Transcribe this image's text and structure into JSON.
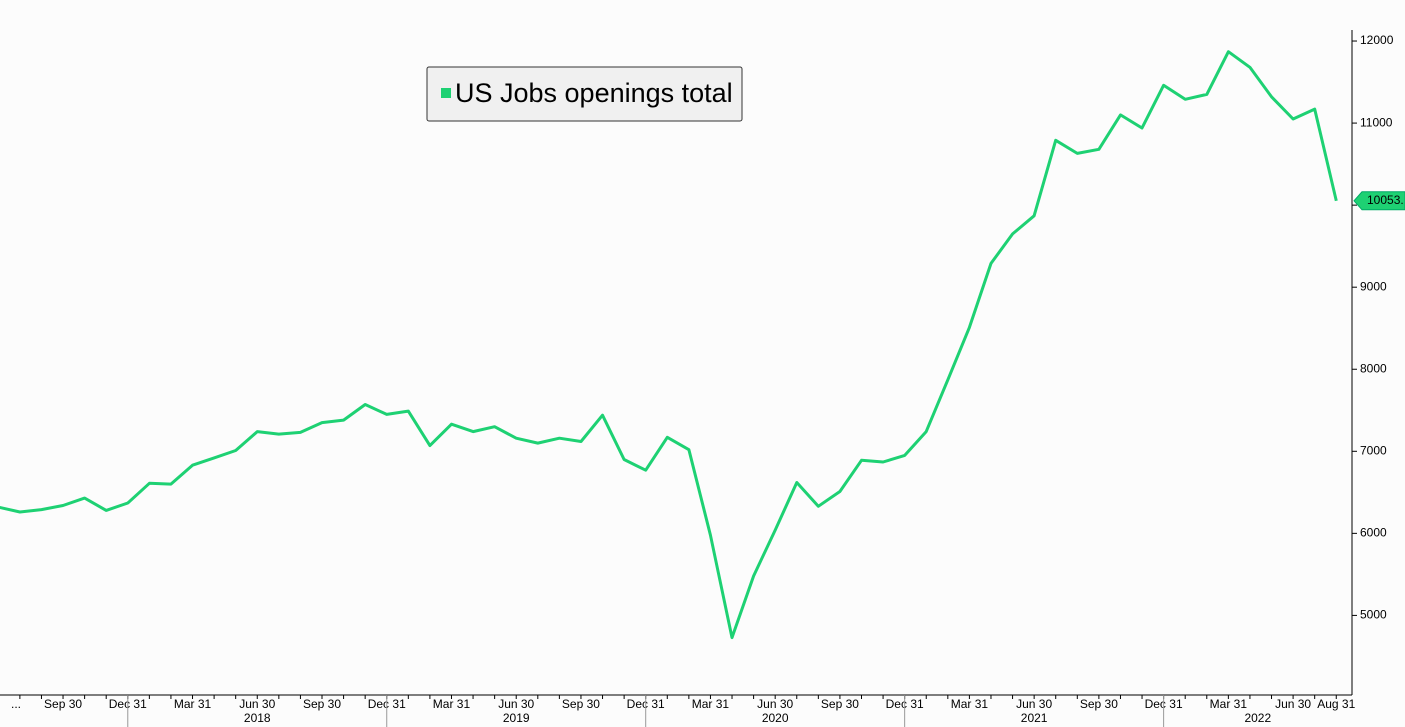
{
  "chart_data": {
    "type": "line",
    "legend": "US Jobs openings total",
    "categories": [
      "...",
      null,
      null,
      "Sep 30",
      null,
      null,
      "Dec 31",
      null,
      null,
      "Mar 31",
      null,
      null,
      "Jun 30",
      null,
      null,
      "Sep 30",
      null,
      null,
      "Dec 31",
      null,
      null,
      "Mar 31",
      null,
      null,
      "Jun 30",
      null,
      null,
      "Sep 30",
      null,
      null,
      "Dec 31",
      null,
      null,
      "Mar 31",
      null,
      null,
      "Jun 30",
      null,
      null,
      "Sep 30",
      null,
      null,
      "Dec 31",
      null,
      null,
      "Mar 31",
      null,
      null,
      "Jun 30",
      null,
      null,
      "Sep 30",
      null,
      null,
      "Dec 31",
      null,
      null,
      "Mar 31",
      null,
      null,
      "Jun 30",
      null,
      "Aug 31"
    ],
    "years": [
      "2018",
      "2019",
      "2020",
      "2021",
      "2022"
    ],
    "series": [
      {
        "name": "US Jobs openings total",
        "color": "#1ed173",
        "values": [
          6320,
          6260,
          6290,
          6340,
          6430,
          6280,
          6370,
          6610,
          6600,
          6830,
          6920,
          7010,
          7240,
          7210,
          7230,
          7350,
          7380,
          7570,
          7450,
          7490,
          7070,
          7330,
          7240,
          7300,
          7160,
          7100,
          7160,
          7120,
          7440,
          6900,
          6770,
          7170,
          7020,
          5980,
          4730,
          5480,
          6040,
          6620,
          6330,
          6510,
          6890,
          6870,
          6950,
          7240,
          7870,
          8510,
          9290,
          9650,
          9870,
          10790,
          10630,
          10680,
          11100,
          10940,
          11460,
          11290,
          11350,
          11870,
          11680,
          11320,
          11050,
          11170,
          10053
        ],
        "value_labels": [
          null,
          null,
          null,
          null,
          null,
          null,
          null,
          null,
          null,
          null,
          null,
          null,
          null,
          null,
          null,
          null,
          null,
          null,
          null,
          null,
          null,
          null,
          null,
          null,
          null,
          null,
          null,
          null,
          null,
          null,
          null,
          null,
          null,
          null,
          null,
          null,
          null,
          null,
          null,
          null,
          null,
          null,
          null,
          null,
          null,
          null,
          null,
          null,
          null,
          null,
          null,
          null,
          null,
          null,
          null,
          null,
          null,
          null,
          null,
          null,
          null,
          null,
          "10053."
        ]
      }
    ],
    "ylim": [
      4030,
      12500
    ],
    "yticks": [
      5000,
      6000,
      7000,
      8000,
      9000,
      10000,
      11000,
      12000
    ]
  }
}
